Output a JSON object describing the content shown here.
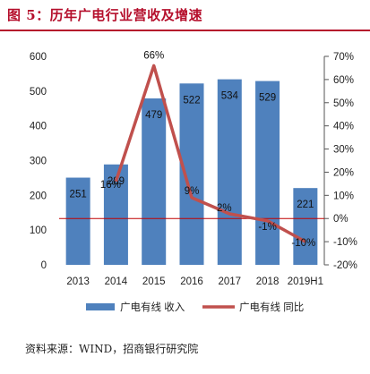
{
  "title": "图 5：历年广电行业营收及增速",
  "source": "资料来源：WIND，招商银行研究院",
  "colors": {
    "bar": "#4f81bd",
    "line": "#c0504d",
    "zero_line": "#c00000",
    "title": "#b50f2c"
  },
  "chart_data": {
    "type": "bar",
    "categories": [
      "2013",
      "2014",
      "2015",
      "2016",
      "2017",
      "2018",
      "2019H1"
    ],
    "series": [
      {
        "name": "广电有线 收入",
        "type": "bar",
        "axis": "left",
        "values": [
          251,
          289,
          479,
          522,
          534,
          529,
          221
        ]
      },
      {
        "name": "广电有线 同比",
        "type": "line",
        "axis": "right",
        "values": [
          null,
          16,
          66,
          9,
          2,
          -1,
          -10
        ]
      }
    ],
    "bar_labels": [
      "251",
      "289",
      "479",
      "522",
      "534",
      "529",
      "221"
    ],
    "line_labels": [
      "",
      "16%",
      "66%",
      "9%",
      "2%",
      "-1%",
      "-10%"
    ],
    "y_left": {
      "min": 0,
      "max": 600,
      "ticks": [
        "0",
        "100",
        "200",
        "300",
        "400",
        "500",
        "600"
      ]
    },
    "y_right": {
      "min": -20,
      "max": 70,
      "ticks": [
        "-20%",
        "-10%",
        "0%",
        "10%",
        "20%",
        "30%",
        "40%",
        "50%",
        "60%",
        "70%"
      ]
    },
    "legend_position": "bottom",
    "grid": false
  }
}
